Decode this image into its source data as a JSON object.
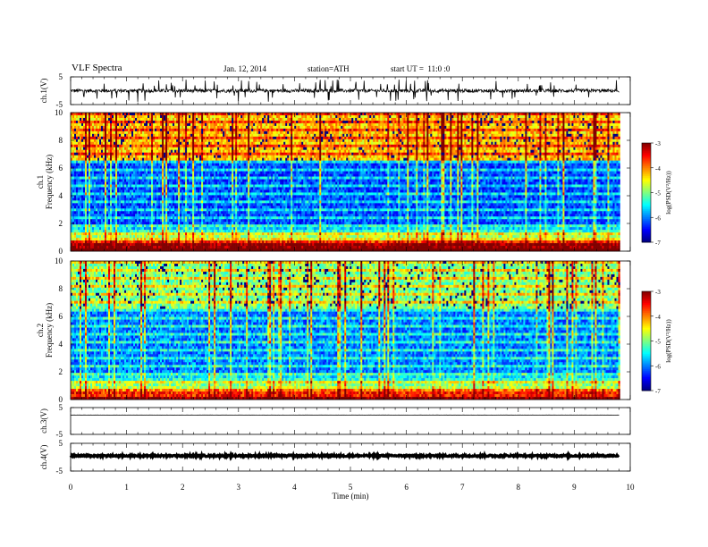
{
  "header": {
    "title": "VLF Spectra",
    "date": "Jan. 12, 2014",
    "station_label": "station=",
    "station": "ATH",
    "start_label": "start UT =",
    "start_time": "11:0 :0"
  },
  "chart_data": [
    {
      "type": "line",
      "panel": "ch1-waveform",
      "ylabel": "ch.1(V)",
      "ylim": [
        -5,
        5
      ],
      "yticks": [
        "5",
        "-5"
      ],
      "baseline": 0,
      "noise_amplitude": 0.6,
      "spike_amplitude": 4,
      "x_end_min": 9.8
    },
    {
      "type": "heatmap",
      "panel": "ch1-spectrogram",
      "ylabel": "Frequency (kHz)",
      "ylabel_channel": "ch.1",
      "ylim": [
        0,
        10
      ],
      "yticks": [
        "0",
        "2",
        "4",
        "6",
        "8",
        "10"
      ],
      "colorbar": {
        "label": "log(PSD(V^2/Hz))",
        "label_text": "log(PSD(V²/Hz))",
        "range": [
          -7,
          -3
        ],
        "ticks": [
          "-3",
          "-4",
          "-5",
          "-6",
          "-7"
        ]
      },
      "description_bands": {
        "high_freq_level": -4.3,
        "mid_freq_level": -6.2,
        "low_freq_level": -3.2
      },
      "x_end_min": 9.8
    },
    {
      "type": "heatmap",
      "panel": "ch2-spectrogram",
      "ylabel": "Frequency (kHz)",
      "ylabel_channel": "ch.2",
      "ylim": [
        0,
        10
      ],
      "yticks": [
        "0",
        "2",
        "4",
        "6",
        "8",
        "10"
      ],
      "colorbar": {
        "label": "log(PSD(V^2/Hz))",
        "label_text": "log(PSD(V²/Hz))",
        "range": [
          -7,
          -3
        ],
        "ticks": [
          "-3",
          "-4",
          "-5",
          "-6",
          "-7"
        ]
      },
      "description_bands": {
        "high_freq_level": -5.0,
        "mid_freq_level": -6.0,
        "low_freq_level": -3.8
      },
      "x_end_min": 9.8
    },
    {
      "type": "line",
      "panel": "ch3-waveform",
      "ylabel": "ch.3(V)",
      "ylim": [
        -5,
        5
      ],
      "yticks": [
        "5",
        "-5"
      ],
      "baseline": 2.2,
      "noise_amplitude": 0.05,
      "x_end_min": 9.8
    },
    {
      "type": "line",
      "panel": "ch4-waveform",
      "ylabel": "ch.4(V)",
      "ylim": [
        -5,
        5
      ],
      "yticks": [
        "5",
        "-5"
      ],
      "baseline": 0.5,
      "noise_amplitude": 0.3,
      "x_end_min": 9.8
    }
  ],
  "x_axis": {
    "label": "Time (min)",
    "range": [
      0,
      10
    ],
    "ticks": [
      "0",
      "1",
      "2",
      "3",
      "4",
      "5",
      "6",
      "7",
      "8",
      "9",
      "10"
    ]
  }
}
